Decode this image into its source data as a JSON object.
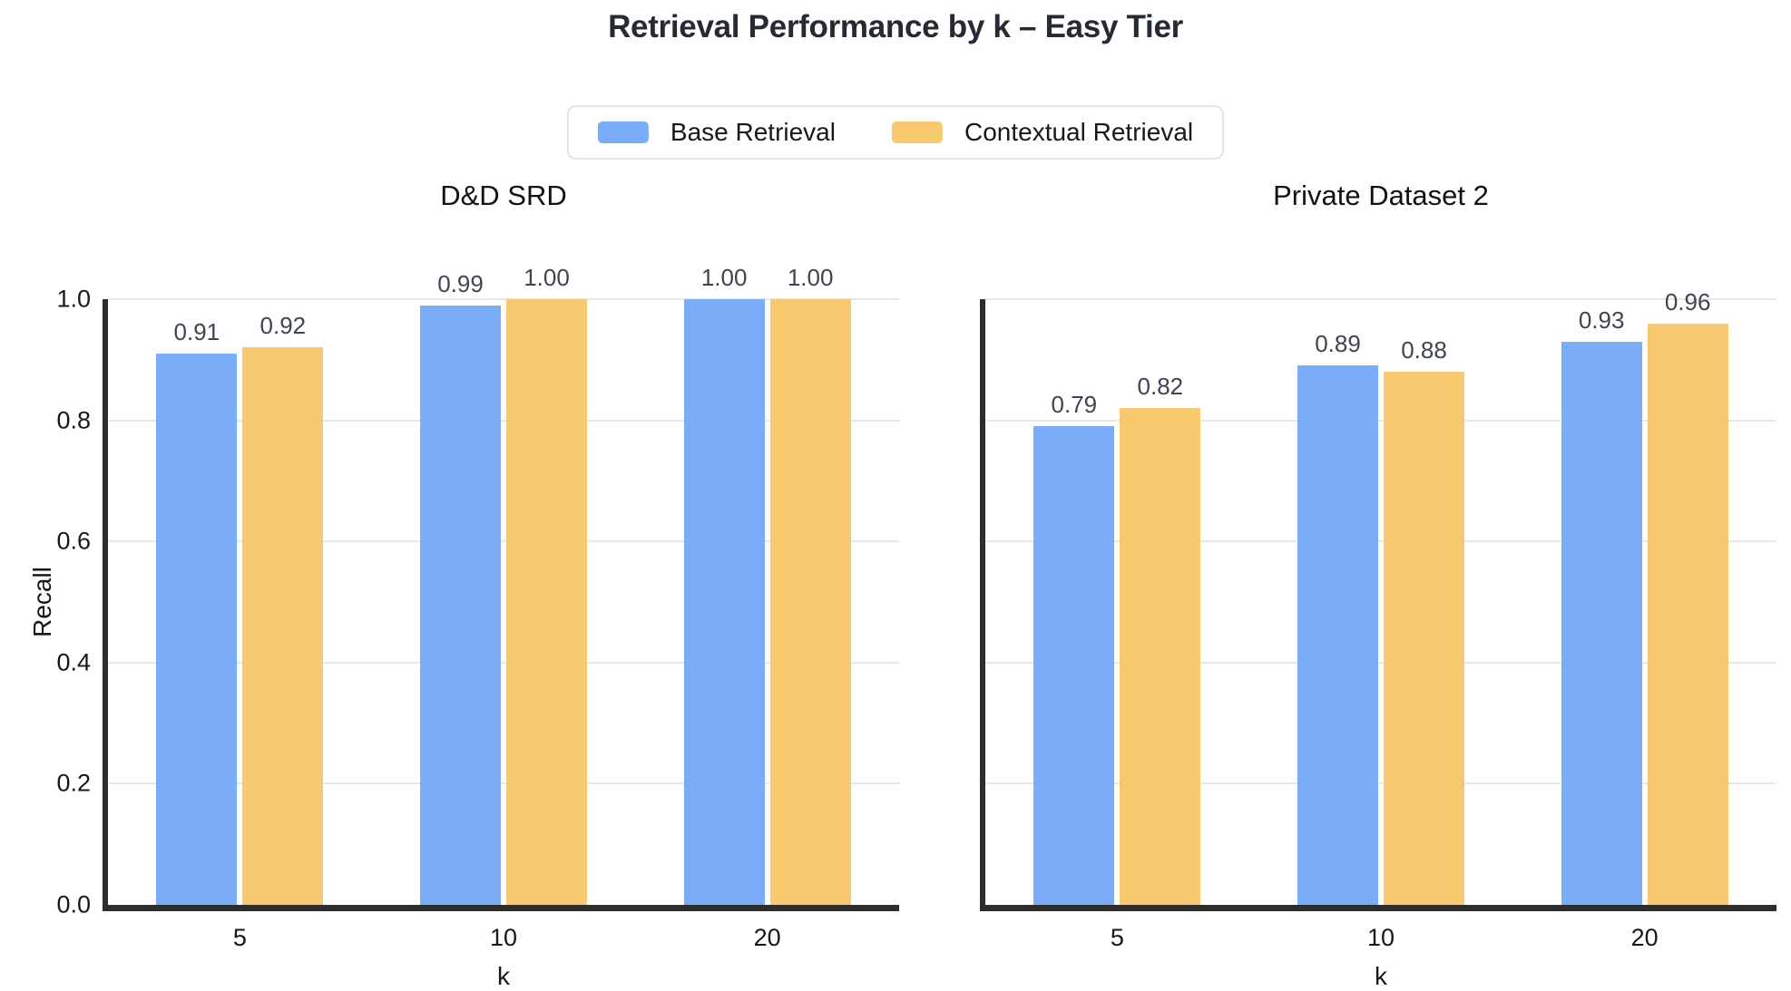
{
  "page": {
    "title": "Retrieval Performance by k – Easy Tier"
  },
  "legend": {
    "position": "top-center",
    "items": [
      {
        "label": "Base Retrieval",
        "color": "#7AACF8"
      },
      {
        "label": "Contextual Retrieval",
        "color": "#F9C96F"
      }
    ]
  },
  "style": {
    "bar_blue": "#7AACF8",
    "bar_orange": "#F9C96F",
    "spine_color": "#2E2E2E",
    "grid_color": "#E7E7E7",
    "title_color": "#262B33",
    "value_label_color": "#3F4550"
  },
  "chart_data": [
    {
      "type": "bar",
      "title": "D&D SRD",
      "categories": [
        "5",
        "10",
        "20"
      ],
      "series": [
        {
          "name": "Base Retrieval",
          "color": "#7AACF8",
          "values": [
            0.91,
            0.99,
            1.0
          ]
        },
        {
          "name": "Contextual Retrieval",
          "color": "#F9C96F",
          "values": [
            0.92,
            1.0,
            1.0
          ]
        }
      ],
      "xlabel": "k",
      "ylabel": "Recall",
      "ylim": [
        0.0,
        1.0
      ],
      "yticks": [
        0.0,
        0.2,
        0.4,
        0.6,
        0.8,
        1.0
      ],
      "show_ytick_labels": true,
      "grid": true,
      "bar_value_labels": true
    },
    {
      "type": "bar",
      "title": "Private Dataset 2",
      "categories": [
        "5",
        "10",
        "20"
      ],
      "series": [
        {
          "name": "Base Retrieval",
          "color": "#7AACF8",
          "values": [
            0.79,
            0.89,
            0.93
          ]
        },
        {
          "name": "Contextual Retrieval",
          "color": "#F9C96F",
          "values": [
            0.82,
            0.88,
            0.96
          ]
        }
      ],
      "xlabel": "k",
      "ylabel": "",
      "ylim": [
        0.0,
        1.0
      ],
      "yticks": [
        0.0,
        0.2,
        0.4,
        0.6,
        0.8,
        1.0
      ],
      "show_ytick_labels": false,
      "grid": true,
      "bar_value_labels": true
    }
  ]
}
